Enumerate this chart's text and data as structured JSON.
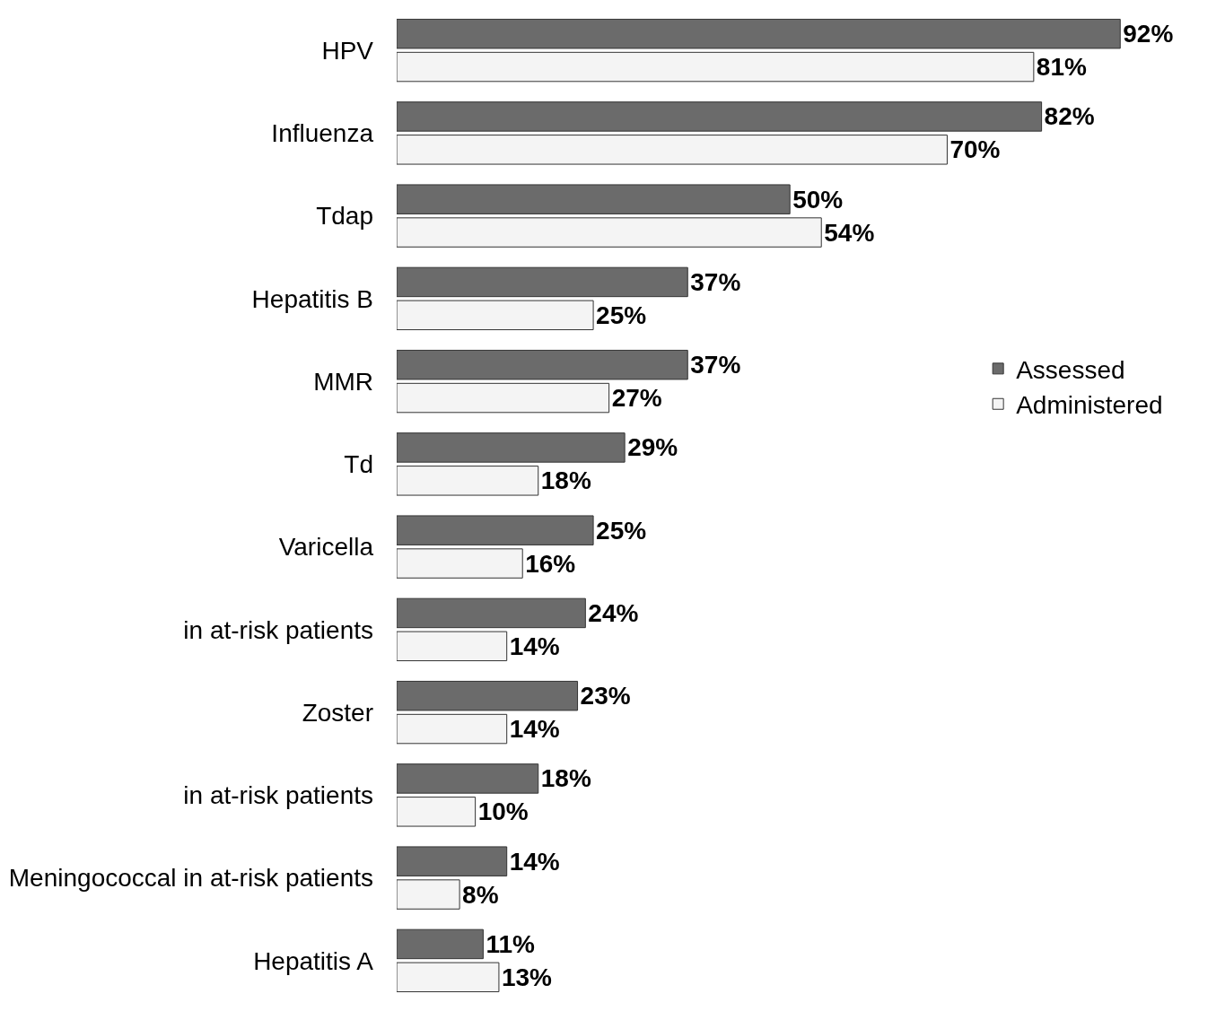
{
  "chart_data": {
    "type": "bar",
    "orientation": "horizontal",
    "legend": "right",
    "categories": [
      "HPV",
      "Influenza",
      "Tdap",
      "Hepatitis B",
      "MMR",
      "Td",
      "Varicella",
      "in at-risk patients",
      "Zoster",
      "in at-risk patients",
      "Meningococcal in at-risk patients",
      "Hepatitis A"
    ],
    "series": [
      {
        "name": "Assessed",
        "color": "#6b6b6b",
        "values": [
          92,
          82,
          50,
          37,
          37,
          29,
          25,
          24,
          23,
          18,
          14,
          11
        ],
        "value_labels": [
          "92%",
          "82%",
          "50%",
          "37%",
          "37%",
          "29%",
          "25%",
          "24%",
          "23%",
          "18%",
          "14%",
          "11%"
        ]
      },
      {
        "name": "Administered",
        "color": "#f4f4f4",
        "values": [
          81,
          70,
          54,
          25,
          27,
          18,
          16,
          14,
          14,
          10,
          8,
          13
        ],
        "value_labels": [
          "81%",
          "70%",
          "54%",
          "25%",
          "27%",
          "18%",
          "16%",
          "14%",
          "14%",
          "10%",
          "8%",
          "13%"
        ]
      }
    ]
  }
}
